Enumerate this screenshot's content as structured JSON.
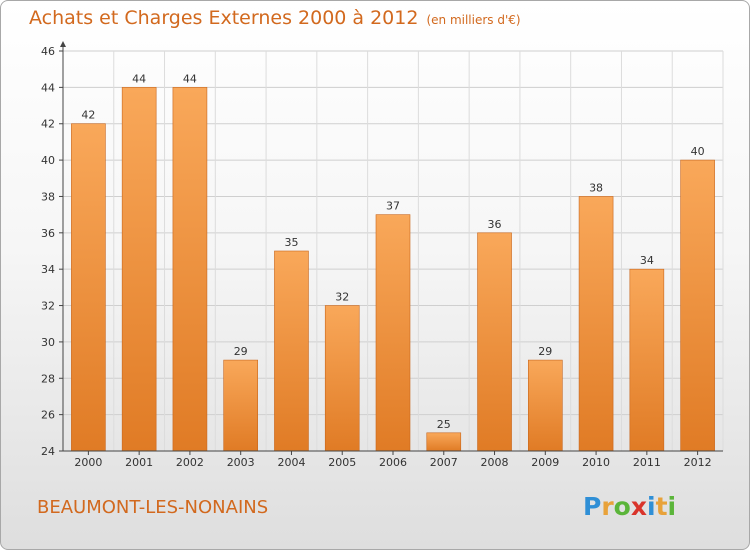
{
  "title": "Achats et Charges Externes 2000 à 2012",
  "unit_note": "(en milliers d'€)",
  "commune": "BEAUMONT-LES-NONAINS",
  "logo": {
    "text": "Proxiti",
    "letters": [
      {
        "char": "P",
        "color": "#2f8fd6"
      },
      {
        "char": "r",
        "color": "#e8a23a"
      },
      {
        "char": "o",
        "color": "#5bb53a"
      },
      {
        "char": "x",
        "color": "#d9342b"
      },
      {
        "char": "i",
        "color": "#2f8fd6"
      },
      {
        "char": "t",
        "color": "#e8a23a"
      },
      {
        "char": "i",
        "color": "#5bb53a"
      }
    ]
  },
  "colors": {
    "accent": "#d2691e",
    "bar_light": "#f9a85a",
    "bar_dark": "#e07b25",
    "bar_edge": "#c8661c"
  },
  "chart_data": {
    "type": "bar",
    "categories": [
      "2000",
      "2001",
      "2002",
      "2003",
      "2004",
      "2005",
      "2006",
      "2007",
      "2008",
      "2009",
      "2010",
      "2011",
      "2012"
    ],
    "values": [
      42,
      44,
      44,
      29,
      35,
      32,
      37,
      25,
      36,
      29,
      38,
      34,
      40
    ],
    "ylim": [
      24,
      46
    ],
    "yticks": [
      24,
      26,
      28,
      30,
      32,
      34,
      36,
      38,
      40,
      42,
      44,
      46
    ],
    "xlabel": "",
    "ylabel": "",
    "grid": true,
    "data_labels": true
  }
}
